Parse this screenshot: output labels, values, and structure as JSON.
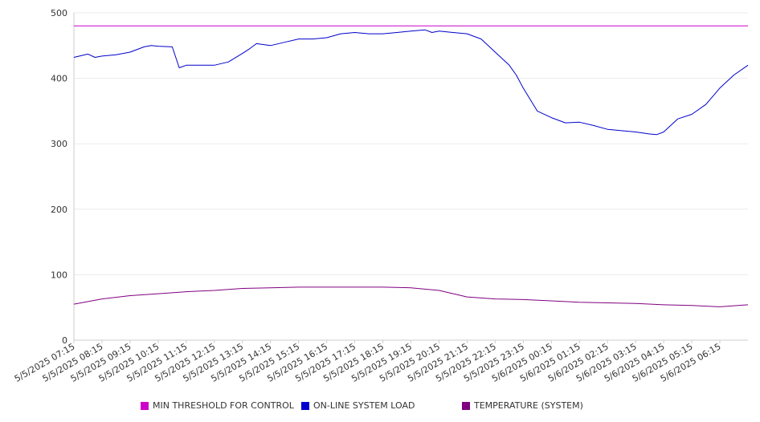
{
  "chart_data": {
    "type": "line",
    "title": "",
    "xlabel": "",
    "ylabel": "",
    "ylim": [
      0,
      500
    ],
    "yticks": [
      0,
      100,
      200,
      300,
      400,
      500
    ],
    "xlim": [
      "5/5/2025 07:15",
      "5/6/2025 07:15"
    ],
    "x_tick_labels": [
      "5/5/2025 07:15",
      "5/5/2025 08:15",
      "5/5/2025 09:15",
      "5/5/2025 10:15",
      "5/5/2025 11:15",
      "5/5/2025 12:15",
      "5/5/2025 13:15",
      "5/5/2025 14:15",
      "5/5/2025 15:15",
      "5/5/2025 16:15",
      "5/5/2025 17:15",
      "5/5/2025 18:15",
      "5/5/2025 19:15",
      "5/5/2025 20:15",
      "5/5/2025 21:15",
      "5/5/2025 22:15",
      "5/5/2025 23:15",
      "5/6/2025 00:15",
      "5/6/2025 01:15",
      "5/6/2025 02:15",
      "5/6/2025 03:15",
      "5/6/2025 04:15",
      "5/6/2025 05:15",
      "5/6/2025 06:15"
    ],
    "grid": true,
    "legend_position": "bottom",
    "series": [
      {
        "name": "MIN THRESHOLD FOR CONTROL",
        "color": "#cc00cc",
        "x": [
          "5/5/2025 07:15",
          "5/6/2025 07:15"
        ],
        "y": [
          480,
          480
        ]
      },
      {
        "name": "ON-LINE SYSTEM LOAD",
        "color": "#0000cc",
        "x": [
          "5/5/2025 07:15",
          "5/5/2025 07:45",
          "5/5/2025 08:00",
          "5/5/2025 08:15",
          "5/5/2025 08:45",
          "5/5/2025 09:15",
          "5/5/2025 09:45",
          "5/5/2025 10:00",
          "5/5/2025 10:15",
          "5/5/2025 10:45",
          "5/5/2025 11:00",
          "5/5/2025 11:15",
          "5/5/2025 11:45",
          "5/5/2025 12:15",
          "5/5/2025 12:45",
          "5/5/2025 13:15",
          "5/5/2025 13:30",
          "5/5/2025 13:45",
          "5/5/2025 14:15",
          "5/5/2025 14:45",
          "5/5/2025 15:15",
          "5/5/2025 15:45",
          "5/5/2025 16:15",
          "5/5/2025 16:45",
          "5/5/2025 17:15",
          "5/5/2025 17:45",
          "5/5/2025 18:15",
          "5/5/2025 18:45",
          "5/5/2025 19:15",
          "5/5/2025 19:45",
          "5/5/2025 20:00",
          "5/5/2025 20:15",
          "5/5/2025 20:45",
          "5/5/2025 21:15",
          "5/5/2025 21:45",
          "5/5/2025 22:15",
          "5/5/2025 22:45",
          "5/5/2025 23:00",
          "5/5/2025 23:15",
          "5/5/2025 23:45",
          "5/6/2025 00:15",
          "5/6/2025 00:45",
          "5/6/2025 01:15",
          "5/6/2025 01:45",
          "5/6/2025 02:15",
          "5/6/2025 02:45",
          "5/6/2025 03:15",
          "5/6/2025 03:45",
          "5/6/2025 04:00",
          "5/6/2025 04:15",
          "5/6/2025 04:45",
          "5/6/2025 05:15",
          "5/6/2025 05:45",
          "5/6/2025 06:15",
          "5/6/2025 06:45",
          "5/6/2025 07:15"
        ],
        "y": [
          432,
          437,
          432,
          434,
          436,
          440,
          448,
          450,
          449,
          448,
          416,
          420,
          420,
          420,
          425,
          438,
          445,
          453,
          450,
          455,
          460,
          460,
          462,
          468,
          470,
          468,
          468,
          470,
          472,
          474,
          470,
          472,
          470,
          468,
          460,
          440,
          420,
          405,
          385,
          350,
          340,
          332,
          333,
          328,
          322,
          320,
          318,
          315,
          314,
          318,
          338,
          345,
          360,
          385,
          405,
          420
        ]
      },
      {
        "name": "TEMPERATURE (SYSTEM)",
        "color": "#800080",
        "x": [
          "5/5/2025 07:15",
          "5/5/2025 08:15",
          "5/5/2025 09:15",
          "5/5/2025 10:15",
          "5/5/2025 11:15",
          "5/5/2025 12:15",
          "5/5/2025 13:15",
          "5/5/2025 14:15",
          "5/5/2025 15:15",
          "5/5/2025 16:15",
          "5/5/2025 17:15",
          "5/5/2025 18:15",
          "5/5/2025 19:15",
          "5/5/2025 20:15",
          "5/5/2025 21:15",
          "5/5/2025 22:15",
          "5/5/2025 23:15",
          "5/6/2025 00:15",
          "5/6/2025 01:15",
          "5/6/2025 02:15",
          "5/6/2025 03:15",
          "5/6/2025 04:15",
          "5/6/2025 05:15",
          "5/6/2025 06:15",
          "5/6/2025 07:15"
        ],
        "y": [
          55,
          63,
          68,
          71,
          74,
          76,
          79,
          80,
          81,
          81,
          81,
          81,
          80,
          76,
          66,
          63,
          62,
          60,
          58,
          57,
          56,
          54,
          53,
          51,
          54
        ]
      }
    ]
  }
}
